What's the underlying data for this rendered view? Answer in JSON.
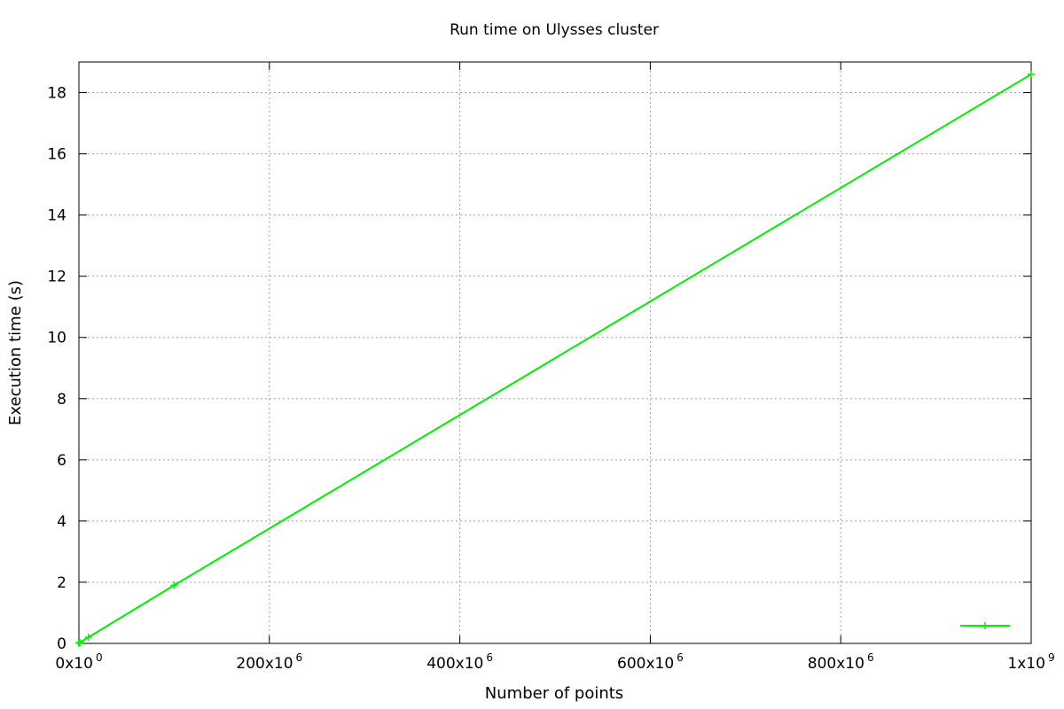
{
  "chart_data": {
    "type": "line",
    "title": "Run time on Ulysses cluster",
    "xlabel": "Number of points",
    "ylabel": "Execution time (s)",
    "xlim": [
      0,
      1000000000
    ],
    "ylim": [
      0,
      19
    ],
    "x_ticks": [
      {
        "value": 0,
        "base": "0x10",
        "exp": "0"
      },
      {
        "value": 200000000,
        "base": "200x10",
        "exp": "6"
      },
      {
        "value": 400000000,
        "base": "400x10",
        "exp": "6"
      },
      {
        "value": 600000000,
        "base": "600x10",
        "exp": "6"
      },
      {
        "value": 800000000,
        "base": "800x10",
        "exp": "6"
      },
      {
        "value": 1000000000,
        "base": "1x10",
        "exp": "9"
      }
    ],
    "y_ticks": [
      {
        "value": 0,
        "label": "0"
      },
      {
        "value": 2,
        "label": "2"
      },
      {
        "value": 4,
        "label": "4"
      },
      {
        "value": 6,
        "label": "6"
      },
      {
        "value": 8,
        "label": "8"
      },
      {
        "value": 10,
        "label": "10"
      },
      {
        "value": 12,
        "label": "12"
      },
      {
        "value": 14,
        "label": "14"
      },
      {
        "value": 16,
        "label": "16"
      },
      {
        "value": 18,
        "label": "18"
      }
    ],
    "grid": true,
    "legend_position": "bottom-right",
    "series": [
      {
        "label": "",
        "color": "#00ee00",
        "marker": "plus",
        "x": [
          1000,
          10000,
          100000,
          1000000,
          10000000,
          100000000,
          1000000000
        ],
        "y": [
          0.01,
          0.01,
          0.01,
          0.03,
          0.2,
          1.9,
          18.6
        ]
      }
    ]
  }
}
